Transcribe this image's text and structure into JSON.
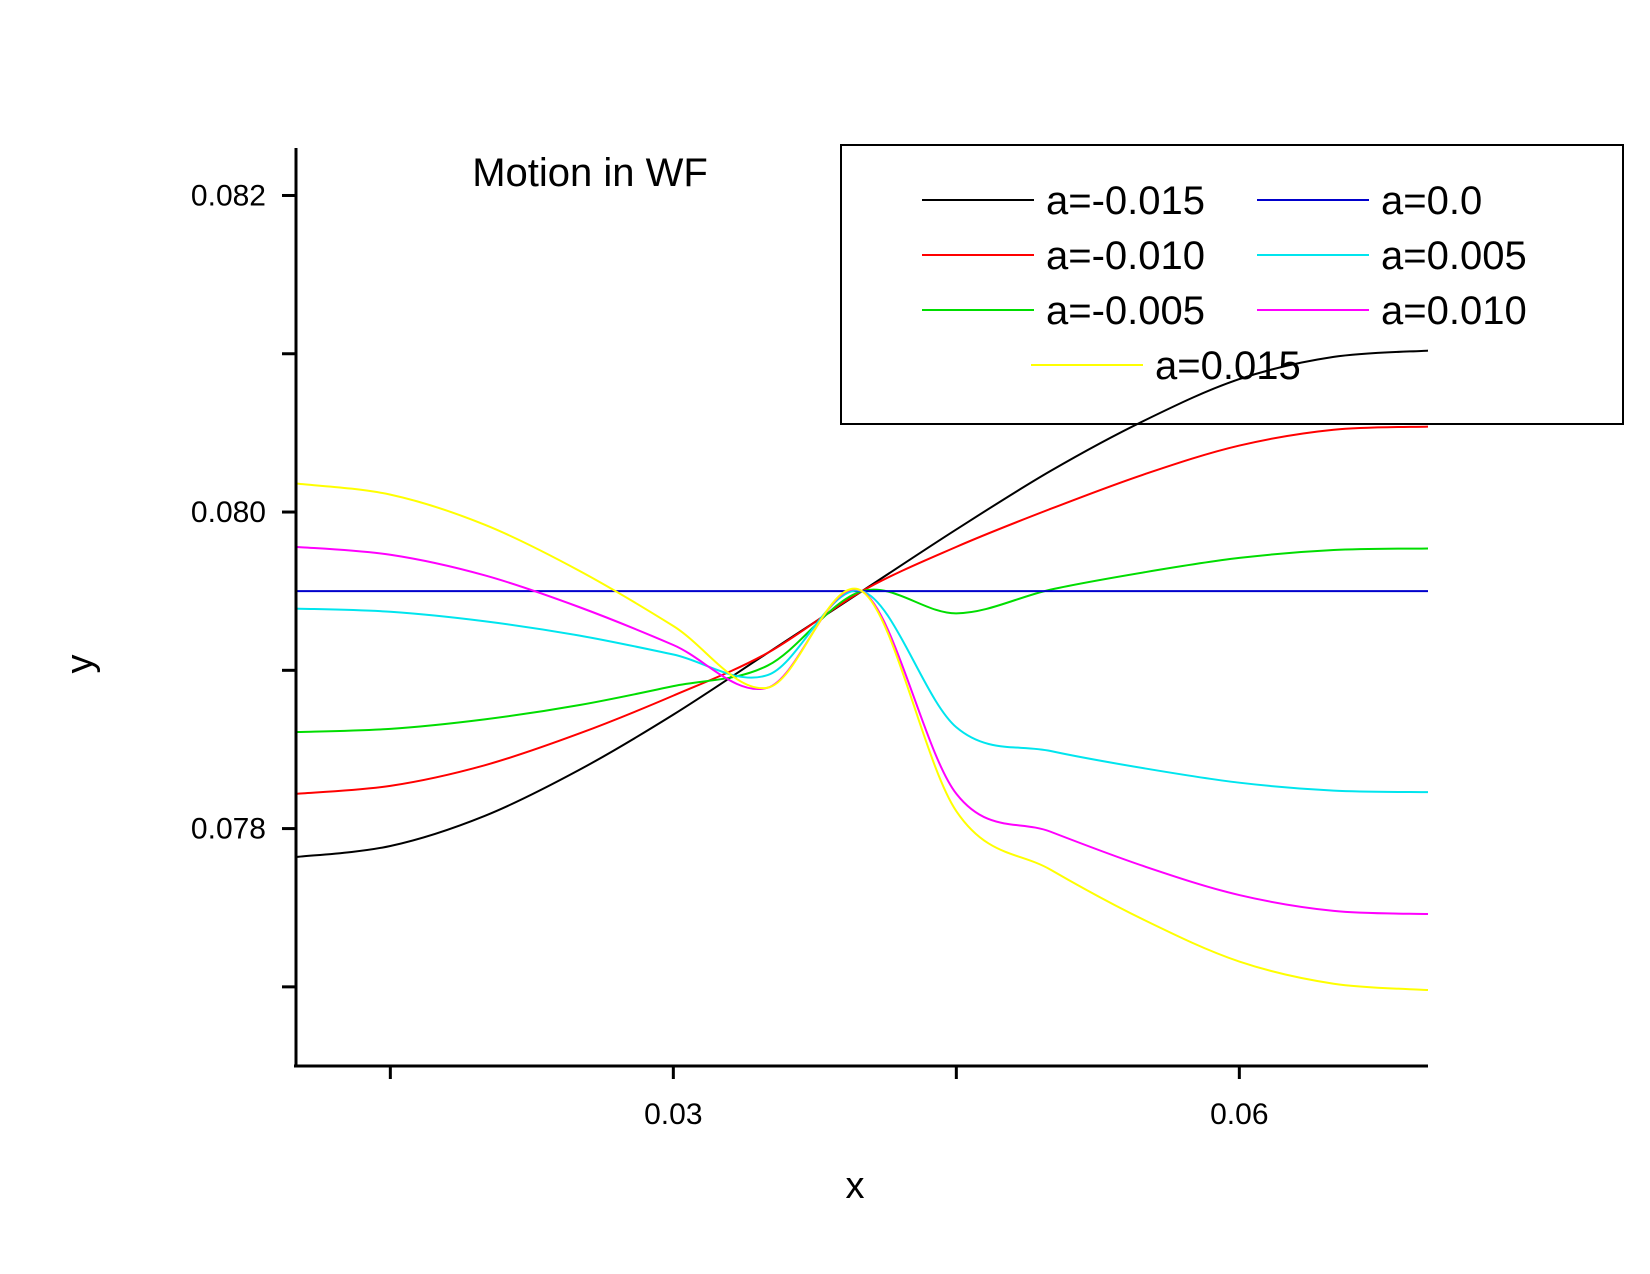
{
  "chart_data": {
    "type": "line",
    "title": "Motion in WF",
    "xlabel": "x",
    "ylabel": "y",
    "xlim": [
      0.01,
      0.07
    ],
    "ylim": [
      0.0765,
      0.0823
    ],
    "x_ticks": [
      {
        "value": 0.015,
        "label": ""
      },
      {
        "value": 0.03,
        "label": "0.03"
      },
      {
        "value": 0.045,
        "label": ""
      },
      {
        "value": 0.06,
        "label": "0.06"
      }
    ],
    "y_ticks": [
      {
        "value": 0.077,
        "label": ""
      },
      {
        "value": 0.078,
        "label": "0.078"
      },
      {
        "value": 0.079,
        "label": ""
      },
      {
        "value": 0.08,
        "label": "0.080"
      },
      {
        "value": 0.081,
        "label": ""
      },
      {
        "value": 0.082,
        "label": "0.082"
      }
    ],
    "grid": false,
    "legend_position": "top-right",
    "x": [
      0.01,
      0.015,
      0.02,
      0.025,
      0.03,
      0.035,
      0.04,
      0.045,
      0.05,
      0.055,
      0.06,
      0.065,
      0.07
    ],
    "series": [
      {
        "name": "a=-0.015",
        "color": "#000000",
        "values": [
          0.07782,
          0.07789,
          0.07808,
          0.07837,
          0.07872,
          0.07911,
          0.0795,
          0.07989,
          0.08026,
          0.08058,
          0.08084,
          0.08098,
          0.08102
        ]
      },
      {
        "name": "a=-0.010",
        "color": "#ff0000",
        "values": [
          0.07822,
          0.07827,
          0.0784,
          0.0786,
          0.07884,
          0.07911,
          0.0795,
          0.07978,
          0.08002,
          0.08024,
          0.08042,
          0.08052,
          0.08054
        ]
      },
      {
        "name": "a=-0.005",
        "color": "#00dd00",
        "values": [
          0.07861,
          0.07863,
          0.07869,
          0.07878,
          0.0789,
          0.07903,
          0.0795,
          0.07936,
          0.07951,
          0.07962,
          0.07971,
          0.07976,
          0.07977
        ]
      },
      {
        "name": "a=0.0",
        "color": "#0000cc",
        "values": [
          0.0795,
          0.0795,
          0.0795,
          0.0795,
          0.0795,
          0.0795,
          0.0795,
          0.0795,
          0.0795,
          0.0795,
          0.0795,
          0.0795,
          0.0795
        ]
      },
      {
        "name": "a=0.005",
        "color": "#00e5ee",
        "values": [
          0.07939,
          0.07937,
          0.07931,
          0.07922,
          0.0791,
          0.07897,
          0.0795,
          0.07864,
          0.07849,
          0.07838,
          0.07829,
          0.07824,
          0.07823
        ]
      },
      {
        "name": "a=0.010",
        "color": "#ff00ff",
        "values": [
          0.07978,
          0.07973,
          0.0796,
          0.0794,
          0.07916,
          0.07889,
          0.0795,
          0.07822,
          0.07798,
          0.07776,
          0.07758,
          0.07748,
          0.07746
        ]
      },
      {
        "name": "a=0.015",
        "color": "#ffff00",
        "values": [
          0.08018,
          0.08011,
          0.07992,
          0.07963,
          0.07928,
          0.07889,
          0.0795,
          0.07811,
          0.07774,
          0.07742,
          0.07716,
          0.07702,
          0.07698
        ]
      }
    ]
  }
}
